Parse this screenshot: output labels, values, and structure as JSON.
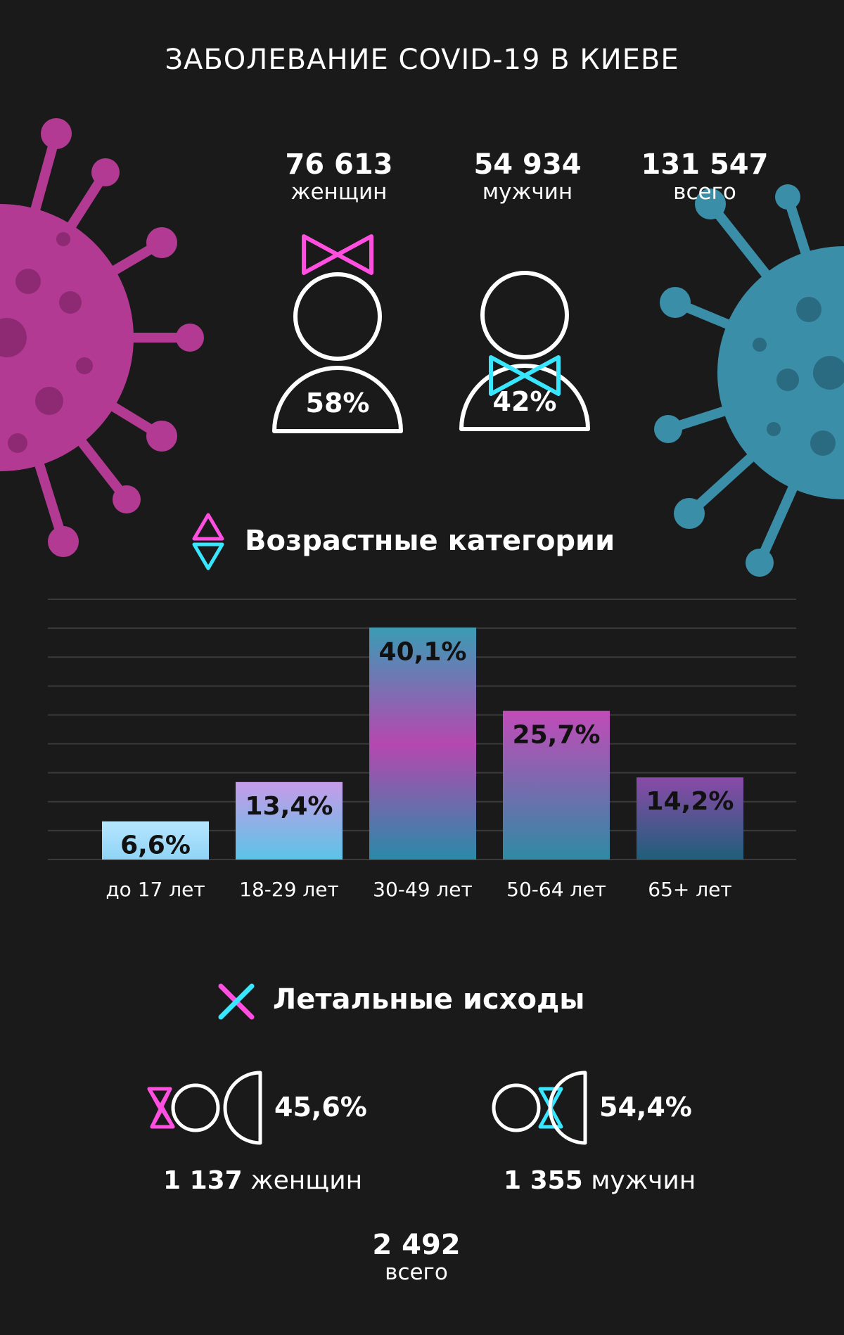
{
  "title": "ЗАБОЛЕВАНИЕ COVID-19 В КИЕВЕ",
  "stats": [
    {
      "value": "76 613",
      "label": "женщин"
    },
    {
      "value": "54 934",
      "label": "мужчин"
    },
    {
      "value": "131 547",
      "label": "всего"
    }
  ],
  "gender_share": {
    "women": "58%",
    "men": "42%"
  },
  "age_section_title": "Возрастные категории",
  "deaths_section_title": "Летальные исходы",
  "deaths": {
    "women_pct": "45,6%",
    "men_pct": "54,4%",
    "women_count": "1 137",
    "women_label": "женщин",
    "men_count": "1 355",
    "men_label": "мужчин",
    "total": "2 492",
    "total_label": "всего"
  },
  "colors": {
    "background": "#1a1a1a",
    "magenta": "#b5408f",
    "teal": "#3a8ea8",
    "neon_pink": "#ff4fe0",
    "neon_cyan": "#39e6ff"
  },
  "chart_data": {
    "type": "bar",
    "categories": [
      "до 17 лет",
      "18-29 лет",
      "30-49 лет",
      "50-64 лет",
      "65+ лет"
    ],
    "values": [
      6.6,
      13.4,
      40.1,
      25.7,
      14.2
    ],
    "data_labels": [
      "6,6%",
      "13,4%",
      "40,1%",
      "25,7%",
      "14,2%"
    ],
    "ylim": [
      0,
      45
    ],
    "grid": true
  }
}
